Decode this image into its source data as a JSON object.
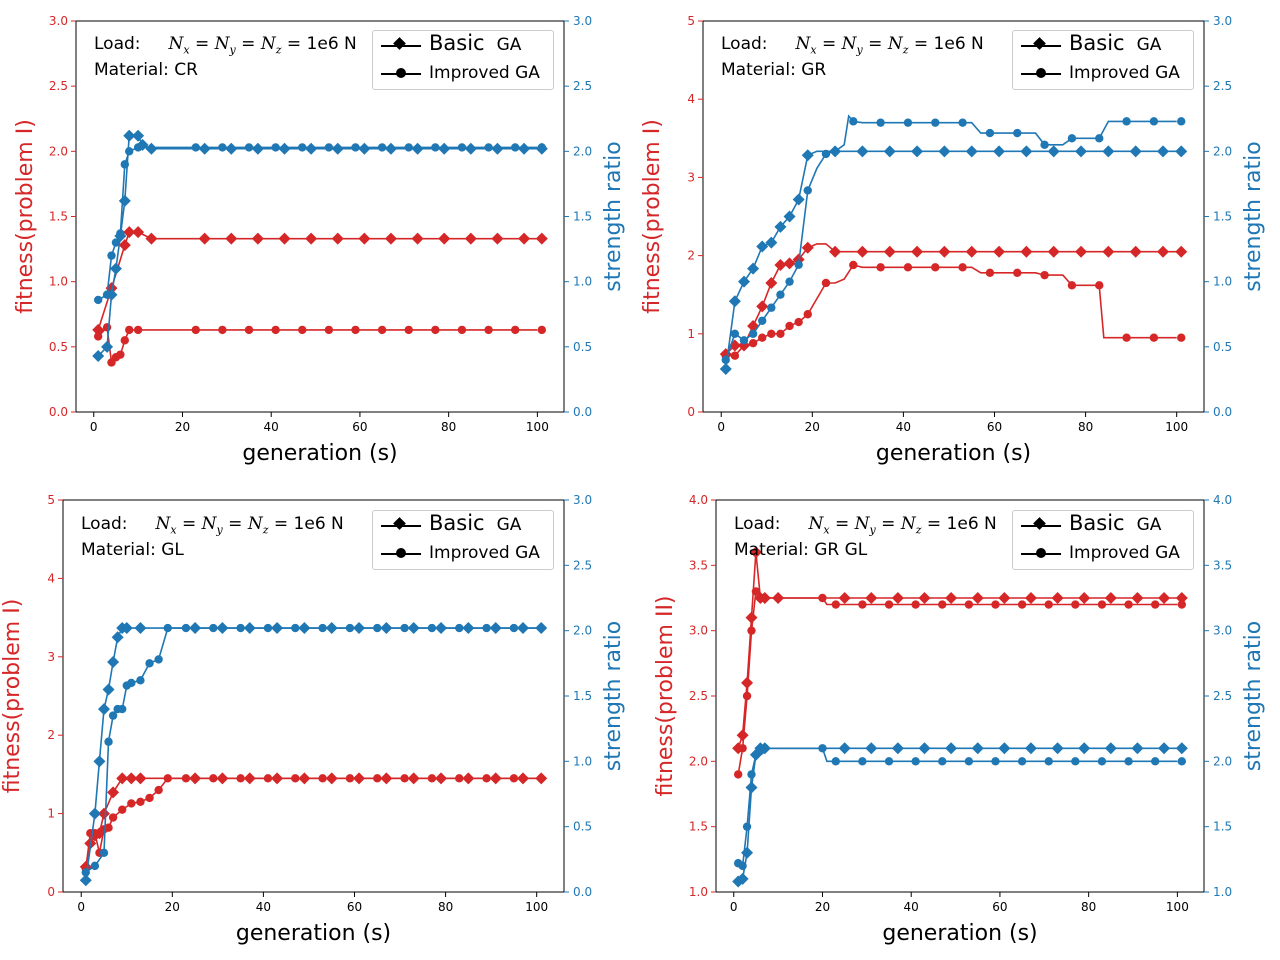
{
  "colors": {
    "left_axis": "#d62728",
    "right_axis": "#1f77b4",
    "legend_marker": "#000000"
  },
  "legend": {
    "basic_1": "Basic",
    "basic_2": "GA",
    "improved": "Improved GA"
  },
  "annotation": {
    "load_label": "Load:",
    "math_rhs": "= 1e6 N",
    "material_prefix": "Material:"
  },
  "chart_data": [
    {
      "type": "line",
      "material": "CR",
      "xlabel": "generation (s)",
      "ylabel": "fitness(problem I)",
      "y2label": "strength ratio",
      "xlim": [
        -4,
        106
      ],
      "ylim": [
        0,
        3
      ],
      "y2lim": [
        0,
        3
      ],
      "xticks": [
        0,
        20,
        40,
        60,
        80,
        100
      ],
      "yticks": [
        "0.0",
        "0.5",
        "1.0",
        "1.5",
        "2.0",
        "2.5",
        "3.0"
      ],
      "y2ticks": [
        "0.0",
        "0.5",
        "1.0",
        "1.5",
        "2.0",
        "2.5",
        "3.0"
      ],
      "series": [
        {
          "legend": "basic",
          "axis": "left",
          "x": [
            1,
            4,
            7,
            8,
            10,
            13,
            100
          ],
          "y": [
            0.63,
            0.95,
            1.28,
            1.38,
            1.38,
            1.33,
            1.33
          ]
        },
        {
          "legend": "improved",
          "axis": "left",
          "x": [
            1,
            3,
            4,
            5,
            6,
            7,
            8,
            10,
            100
          ],
          "y": [
            0.58,
            0.65,
            0.38,
            0.42,
            0.44,
            0.55,
            0.63,
            0.63,
            0.63
          ]
        },
        {
          "legend": "basic",
          "axis": "right",
          "x": [
            1,
            3,
            4,
            5,
            6,
            7,
            8,
            10,
            11,
            13,
            100
          ],
          "y": [
            0.43,
            0.5,
            0.9,
            1.1,
            1.35,
            1.62,
            2.12,
            2.12,
            2.05,
            2.02,
            2.02
          ]
        },
        {
          "legend": "improved",
          "axis": "right",
          "x": [
            1,
            3,
            4,
            5,
            6,
            7,
            8,
            10,
            100
          ],
          "y": [
            0.86,
            0.9,
            1.2,
            1.3,
            1.37,
            1.9,
            2.0,
            2.03,
            2.03
          ]
        }
      ]
    },
    {
      "type": "line",
      "material": "GR",
      "xlabel": "generation (s)",
      "ylabel": "fitness(problem I)",
      "y2label": "strength ratio",
      "xlim": [
        -4,
        106
      ],
      "ylim": [
        0,
        5
      ],
      "y2lim": [
        0,
        3
      ],
      "xticks": [
        0,
        20,
        40,
        60,
        80,
        100
      ],
      "yticks": [
        "0",
        "1",
        "2",
        "3",
        "4",
        "5"
      ],
      "y2ticks": [
        "0.0",
        "0.5",
        "1.0",
        "1.5",
        "2.0",
        "2.5",
        "3.0"
      ],
      "series": [
        {
          "legend": "basic",
          "axis": "left",
          "x": [
            1,
            3,
            5,
            7,
            9,
            11,
            13,
            15,
            17,
            19,
            21,
            23,
            25,
            100
          ],
          "y": [
            0.74,
            0.85,
            0.85,
            1.1,
            1.35,
            1.65,
            1.88,
            1.9,
            1.95,
            2.1,
            2.15,
            2.15,
            2.05,
            2.05
          ]
        },
        {
          "legend": "improved",
          "axis": "left",
          "x": [
            1,
            3,
            5,
            7,
            9,
            11,
            13,
            15,
            17,
            19,
            21,
            23,
            25,
            27,
            29,
            31,
            55,
            57,
            69,
            71,
            75,
            77,
            81,
            83,
            84,
            100
          ],
          "y": [
            0.72,
            0.72,
            0.85,
            0.88,
            0.95,
            1.0,
            1.0,
            1.1,
            1.15,
            1.25,
            1.45,
            1.65,
            1.65,
            1.7,
            1.88,
            1.85,
            1.85,
            1.78,
            1.78,
            1.75,
            1.75,
            1.62,
            1.62,
            1.62,
            0.95,
            0.95
          ]
        },
        {
          "legend": "basic",
          "axis": "right",
          "x": [
            1,
            3,
            5,
            7,
            9,
            11,
            13,
            15,
            17,
            19,
            21,
            100
          ],
          "y": [
            0.33,
            0.85,
            1.0,
            1.1,
            1.27,
            1.3,
            1.42,
            1.5,
            1.63,
            1.97,
            2.0,
            2.0
          ]
        },
        {
          "legend": "improved",
          "axis": "right",
          "x": [
            1,
            3,
            5,
            7,
            9,
            11,
            13,
            15,
            17,
            19,
            21,
            23,
            25,
            27,
            28,
            29,
            31,
            55,
            57,
            69,
            71,
            75,
            77,
            81,
            83,
            85,
            100
          ],
          "y": [
            0.4,
            0.6,
            0.55,
            0.6,
            0.7,
            0.8,
            0.9,
            1.0,
            1.13,
            1.7,
            1.87,
            1.98,
            2.0,
            2.05,
            2.27,
            2.23,
            2.22,
            2.22,
            2.14,
            2.14,
            2.05,
            2.05,
            2.1,
            2.1,
            2.1,
            2.23,
            2.23
          ]
        }
      ]
    },
    {
      "type": "line",
      "material": "GL",
      "xlabel": "generation (s)",
      "ylabel": "fitness(problem I)",
      "y2label": "strength ratio",
      "xlim": [
        -4,
        106
      ],
      "ylim": [
        0,
        5
      ],
      "y2lim": [
        0,
        3
      ],
      "xticks": [
        0,
        20,
        40,
        60,
        80,
        100
      ],
      "yticks": [
        "0",
        "1",
        "2",
        "3",
        "4",
        "5"
      ],
      "y2ticks": [
        "0.0",
        "0.5",
        "1.0",
        "1.5",
        "2.0",
        "2.5",
        "3.0"
      ],
      "series": [
        {
          "legend": "basic",
          "axis": "left",
          "x": [
            1,
            2,
            3,
            4,
            5,
            7,
            9,
            11,
            13,
            100
          ],
          "y": [
            0.32,
            0.62,
            0.72,
            0.75,
            1.0,
            1.27,
            1.45,
            1.45,
            1.45,
            1.45
          ]
        },
        {
          "legend": "improved",
          "axis": "left",
          "x": [
            1,
            2,
            3,
            4,
            5,
            6,
            7,
            9,
            11,
            13,
            15,
            17,
            19,
            21,
            100
          ],
          "y": [
            0.3,
            0.75,
            0.75,
            0.5,
            0.8,
            0.82,
            0.95,
            1.05,
            1.13,
            1.15,
            1.2,
            1.3,
            1.45,
            1.45,
            1.45
          ]
        },
        {
          "legend": "basic",
          "axis": "right",
          "x": [
            1,
            3,
            4,
            5,
            6,
            7,
            8,
            9,
            10,
            13,
            100
          ],
          "y": [
            0.09,
            0.6,
            1.0,
            1.4,
            1.55,
            1.76,
            1.95,
            2.02,
            2.02,
            2.02,
            2.02
          ]
        },
        {
          "legend": "improved",
          "axis": "right",
          "x": [
            1,
            3,
            5,
            6,
            7,
            8,
            9,
            10,
            11,
            13,
            15,
            17,
            19,
            21,
            100
          ],
          "y": [
            0.15,
            0.2,
            0.3,
            1.15,
            1.35,
            1.4,
            1.4,
            1.58,
            1.6,
            1.62,
            1.75,
            1.78,
            2.02,
            2.02,
            2.02
          ]
        }
      ]
    },
    {
      "type": "line",
      "material": "GR GL",
      "xlabel": "generation (s)",
      "ylabel": "fitness(problem II)",
      "y2label": "strength ratio",
      "xlim": [
        -4,
        106
      ],
      "ylim": [
        1,
        4
      ],
      "y2lim": [
        1,
        4
      ],
      "xticks": [
        0,
        20,
        40,
        60,
        80,
        100
      ],
      "yticks": [
        "1.0",
        "1.5",
        "2.0",
        "2.5",
        "3.0",
        "3.5",
        "4.0"
      ],
      "y2ticks": [
        "1.0",
        "1.5",
        "2.0",
        "2.5",
        "3.0",
        "3.5",
        "4.0"
      ],
      "series": [
        {
          "legend": "basic",
          "axis": "left",
          "x": [
            1,
            2,
            3,
            4,
            5,
            6,
            7,
            10,
            100
          ],
          "y": [
            2.1,
            2.2,
            2.6,
            3.1,
            3.6,
            3.25,
            3.25,
            3.25,
            3.25
          ]
        },
        {
          "legend": "improved",
          "axis": "left",
          "x": [
            1,
            2,
            3,
            4,
            5,
            6,
            7,
            20,
            21,
            100
          ],
          "y": [
            1.9,
            2.1,
            2.5,
            3.0,
            3.3,
            3.25,
            3.25,
            3.25,
            3.2,
            3.2
          ]
        },
        {
          "legend": "basic",
          "axis": "right",
          "x": [
            1,
            2,
            3,
            4,
            5,
            6,
            7,
            100
          ],
          "y": [
            1.08,
            1.1,
            1.3,
            1.8,
            2.05,
            2.1,
            2.1,
            2.1
          ]
        },
        {
          "legend": "improved",
          "axis": "right",
          "x": [
            1,
            2,
            3,
            4,
            5,
            6,
            7,
            20,
            21,
            100
          ],
          "y": [
            1.22,
            1.2,
            1.5,
            1.9,
            2.05,
            2.08,
            2.1,
            2.1,
            2.0,
            2.0
          ]
        }
      ]
    }
  ]
}
